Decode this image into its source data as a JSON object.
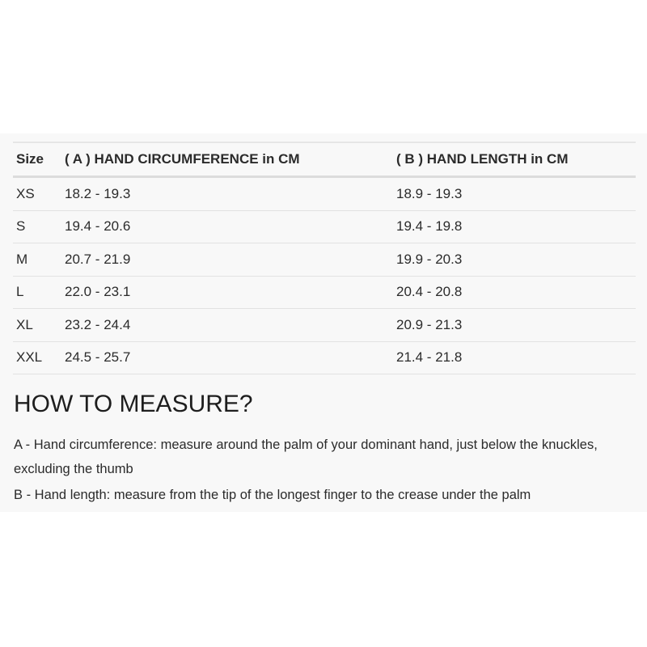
{
  "table": {
    "headers": [
      "Size",
      "( A ) HAND CIRCUMFERENCE in CM",
      "( B ) HAND LENGTH in CM"
    ],
    "rows": [
      [
        "XS",
        "18.2 - 19.3",
        "18.9 - 19.3"
      ],
      [
        "S",
        "19.4 - 20.6",
        "19.4 - 19.8"
      ],
      [
        "M",
        "20.7 - 21.9",
        "19.9 - 20.3"
      ],
      [
        "L",
        "22.0 - 23.1",
        "20.4 - 20.8"
      ],
      [
        "XL",
        "23.2 - 24.4",
        "20.9 - 21.3"
      ],
      [
        "XXL",
        "24.5 - 25.7",
        "21.4 - 21.8"
      ]
    ]
  },
  "howto": {
    "title": "HOW TO MEASURE?",
    "a": "A - Hand circumference: measure around the palm of your dominant hand, just below the knuckles, excluding the thumb",
    "b": "B - Hand length: measure from the tip of the longest finger to the crease under the palm"
  }
}
